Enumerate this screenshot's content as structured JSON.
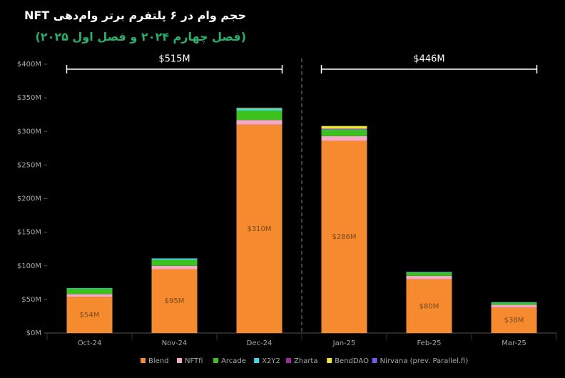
{
  "chart_data": {
    "type": "stacked_bar",
    "title": "حجم وام در ۶ پلتفرم برتر وام‌دهی NFT",
    "subtitle": "(فصل چهارم ۲۰۲۴ و فصل اول ۲۰۲۵)",
    "categories": [
      "Oct-24",
      "Nov-24",
      "Dec-24",
      "Jan-25",
      "Feb-25",
      "Mar-25"
    ],
    "series": [
      {
        "name": "Blend",
        "color": "#f58a2e",
        "values": [
          54,
          95,
          310,
          286,
          80,
          38
        ],
        "value_labels": [
          "$54M",
          "$95M",
          "$310M",
          "$286M",
          "$80M",
          "$38M"
        ]
      },
      {
        "name": "NFTfi",
        "color": "#f7a8c8",
        "values": [
          4,
          5,
          7,
          7,
          5,
          4
        ]
      },
      {
        "name": "Arcade",
        "color": "#3cc21c",
        "values": [
          8,
          9,
          14,
          9,
          5,
          3
        ]
      },
      {
        "name": "X2Y2",
        "color": "#40d9e8",
        "values": [
          1,
          2,
          3,
          1,
          1,
          1
        ]
      },
      {
        "name": "Zharta",
        "color": "#a0299c",
        "values": [
          0,
          0,
          0,
          1,
          0,
          0
        ]
      },
      {
        "name": "BendDAO",
        "color": "#f0e62a",
        "values": [
          0,
          0,
          1,
          4,
          0,
          0
        ]
      },
      {
        "name": "Nirvana (prev. Parallel.fi)",
        "color": "#6d5ae8",
        "values": [
          0,
          0,
          0,
          0,
          0,
          0
        ]
      }
    ],
    "annotations": [
      "$515M",
      "$446M"
    ],
    "ylim": [
      0,
      400
    ],
    "yticks": [
      {
        "value": 0,
        "label": "$0M"
      },
      {
        "value": 50,
        "label": "$50M"
      },
      {
        "value": 100,
        "label": "$100M"
      },
      {
        "value": 150,
        "label": "$150M"
      },
      {
        "value": 200,
        "label": "$200M"
      },
      {
        "value": 250,
        "label": "$250M"
      },
      {
        "value": 300,
        "label": "$300M"
      },
      {
        "value": 350,
        "label": "$350M"
      },
      {
        "value": 400,
        "label": "$400M"
      }
    ]
  }
}
